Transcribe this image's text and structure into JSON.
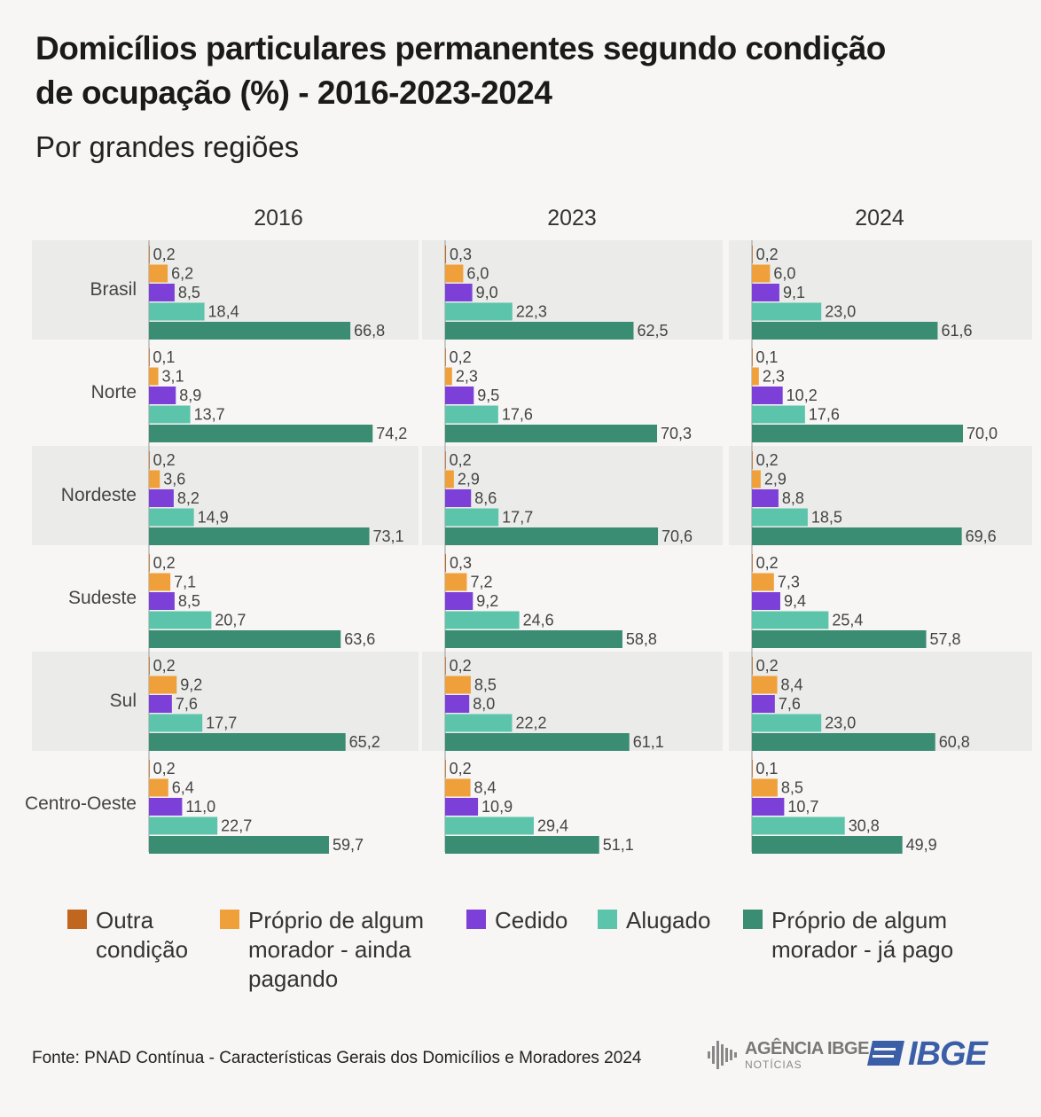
{
  "title": "Domicílios particulares permanentes segundo condição de ocupação (%) - 2016-2023-2024",
  "title_line1": "Domicílios particulares permanentes segundo condição",
  "title_line2": "de ocupação (%) - 2016-2023-2024",
  "subtitle": "Por grandes regiões",
  "source": "Fonte: PNAD Contínua - Características Gerais dos Domicílios e Moradores 2024",
  "logo_agencia": "AGÊNCIA IBGE",
  "logo_agencia_sub": "NOTÍCIAS",
  "logo_ibge": "IBGE",
  "legend": [
    {
      "label_lines": [
        "Outra",
        "condição"
      ],
      "color": "#c0661f"
    },
    {
      "label_lines": [
        "Próprio de algum",
        "morador - ainda",
        "pagando"
      ],
      "color": "#f0a03a"
    },
    {
      "label_lines": [
        "Cedido"
      ],
      "color": "#7c3fd8"
    },
    {
      "label_lines": [
        "Alugado"
      ],
      "color": "#5cc4aa"
    },
    {
      "label_lines": [
        "Próprio de algum",
        "morador - já pago"
      ],
      "color": "#3a8c72"
    }
  ],
  "chart_data": {
    "type": "bar",
    "orientation": "horizontal",
    "facets": [
      "2016",
      "2023",
      "2024"
    ],
    "categories": [
      "Brasil",
      "Norte",
      "Nordeste",
      "Sudeste",
      "Sul",
      "Centro-Oeste"
    ],
    "series_names": [
      "Outra condição",
      "Próprio de algum morador - ainda pagando",
      "Cedido",
      "Alugado",
      "Próprio de algum morador - já pago"
    ],
    "series_colors": [
      "#c0661f",
      "#f0a03a",
      "#7c3fd8",
      "#5cc4aa",
      "#3a8c72"
    ],
    "values": {
      "2016": [
        [
          "0,2",
          "6,2",
          "8,5",
          "18,4",
          "66,8"
        ],
        [
          "0,1",
          "3,1",
          "8,9",
          "13,7",
          "74,2"
        ],
        [
          "0,2",
          "3,6",
          "8,2",
          "14,9",
          "73,1"
        ],
        [
          "0,2",
          "7,1",
          "8,5",
          "20,7",
          "63,6"
        ],
        [
          "0,2",
          "9,2",
          "7,6",
          "17,7",
          "65,2"
        ],
        [
          "0,2",
          "6,4",
          "11,0",
          "22,7",
          "59,7"
        ]
      ],
      "2023": [
        [
          "0,3",
          "6,0",
          "9,0",
          "22,3",
          "62,5"
        ],
        [
          "0,2",
          "2,3",
          "9,5",
          "17,6",
          "70,3"
        ],
        [
          "0,2",
          "2,9",
          "8,6",
          "17,7",
          "70,6"
        ],
        [
          "0,3",
          "7,2",
          "9,2",
          "24,6",
          "58,8"
        ],
        [
          "0,2",
          "8,5",
          "8,0",
          "22,2",
          "61,1"
        ],
        [
          "0,2",
          "8,4",
          "10,9",
          "29,4",
          "51,1"
        ]
      ],
      "2024": [
        [
          "0,2",
          "6,0",
          "9,1",
          "23,0",
          "61,6"
        ],
        [
          "0,1",
          "2,3",
          "10,2",
          "17,6",
          "70,0"
        ],
        [
          "0,2",
          "2,9",
          "8,8",
          "18,5",
          "69,6"
        ],
        [
          "0,2",
          "7,3",
          "9,4",
          "25,4",
          "57,8"
        ],
        [
          "0,2",
          "8,4",
          "7,6",
          "23,0",
          "60,8"
        ],
        [
          "0,1",
          "8,5",
          "10,7",
          "30,8",
          "49,9"
        ]
      ]
    },
    "xlim": [
      0,
      100
    ],
    "unit": "%"
  }
}
